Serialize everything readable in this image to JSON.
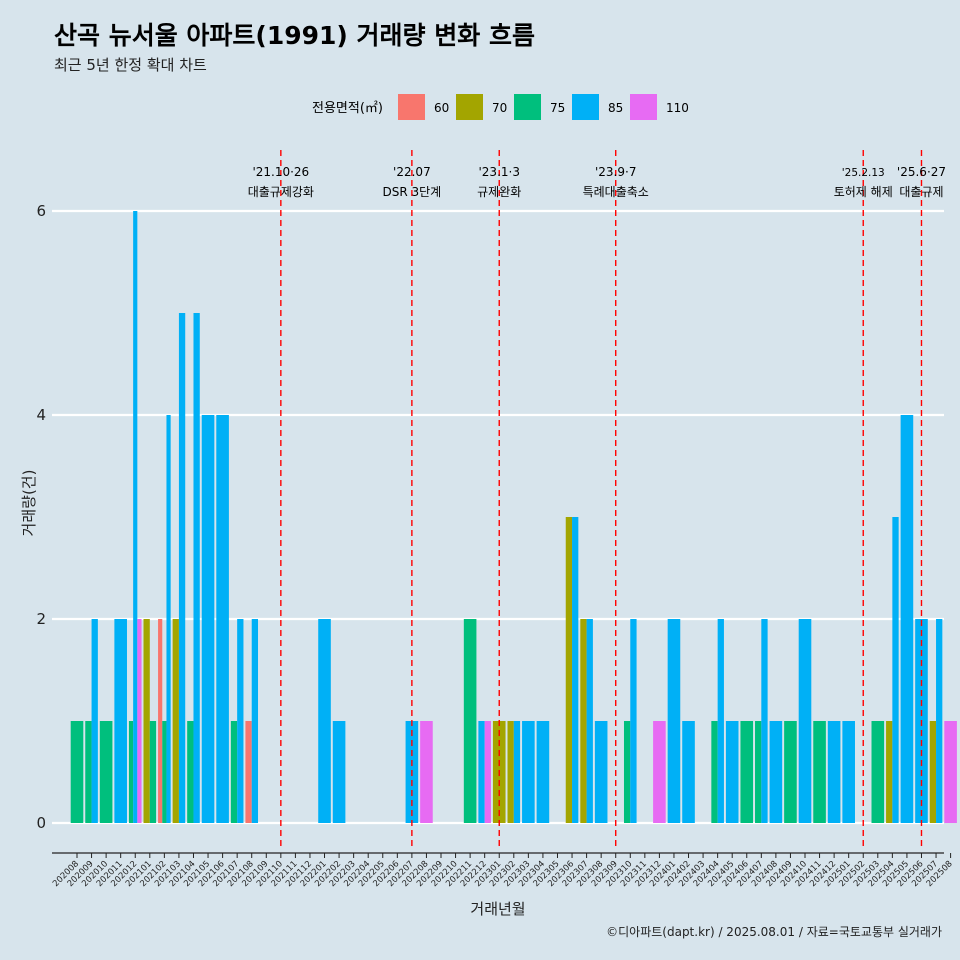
{
  "title": "산곡 뉴서울 아파트(1991) 거래량 변화 흐름",
  "subtitle": "최근 5년 한정 확대 차트",
  "caption": "©디아파트(dapt.kr) / 2025.08.01 / 자료=국토교통부 실거래가",
  "chart_data": {
    "type": "bar",
    "xlabel": "거래년월",
    "ylabel": "거래량(건)",
    "ylim": [
      0,
      6
    ],
    "yticks": [
      0,
      2,
      4,
      6
    ],
    "grid": true,
    "legend": {
      "title": "전용면적(㎡)",
      "placement": "top",
      "items": [
        {
          "name": "60",
          "color": "#F8766D"
        },
        {
          "name": "70",
          "color": "#A3A500"
        },
        {
          "name": "75",
          "color": "#00BF7D"
        },
        {
          "name": "85",
          "color": "#00B0F6"
        },
        {
          "name": "110",
          "color": "#E76BF3"
        }
      ]
    },
    "months": [
      "202008",
      "202009",
      "202010",
      "202011",
      "202012",
      "202101",
      "202102",
      "202103",
      "202104",
      "202105",
      "202106",
      "202107",
      "202108",
      "202109",
      "202110",
      "202111",
      "202112",
      "202201",
      "202202",
      "202203",
      "202204",
      "202205",
      "202206",
      "202207",
      "202208",
      "202209",
      "202210",
      "202211",
      "202212",
      "202301",
      "202302",
      "202303",
      "202304",
      "202305",
      "202306",
      "202307",
      "202308",
      "202309",
      "202310",
      "202311",
      "202312",
      "202401",
      "202402",
      "202403",
      "202404",
      "202405",
      "202406",
      "202407",
      "202408",
      "202409",
      "202410",
      "202411",
      "202412",
      "202501",
      "202502",
      "202503",
      "202504",
      "202505",
      "202506",
      "202507",
      "202508"
    ],
    "bars": [
      {
        "month": "202008",
        "area": "75",
        "value": 1
      },
      {
        "month": "202009",
        "area": "75",
        "value": 1
      },
      {
        "month": "202009",
        "area": "85",
        "value": 2
      },
      {
        "month": "202010",
        "area": "75",
        "value": 1
      },
      {
        "month": "202011",
        "area": "85",
        "value": 2
      },
      {
        "month": "202012",
        "area": "75",
        "value": 1
      },
      {
        "month": "202012",
        "area": "85",
        "value": 6
      },
      {
        "month": "202012",
        "area": "110",
        "value": 2
      },
      {
        "month": "202101",
        "area": "70",
        "value": 2
      },
      {
        "month": "202101",
        "area": "75",
        "value": 1
      },
      {
        "month": "202102",
        "area": "60",
        "value": 2
      },
      {
        "month": "202102",
        "area": "75",
        "value": 1
      },
      {
        "month": "202102",
        "area": "85",
        "value": 4
      },
      {
        "month": "202103",
        "area": "70",
        "value": 2
      },
      {
        "month": "202103",
        "area": "85",
        "value": 5
      },
      {
        "month": "202104",
        "area": "75",
        "value": 1
      },
      {
        "month": "202104",
        "area": "85",
        "value": 5
      },
      {
        "month": "202105",
        "area": "85",
        "value": 4
      },
      {
        "month": "202106",
        "area": "85",
        "value": 4
      },
      {
        "month": "202107",
        "area": "75",
        "value": 1
      },
      {
        "month": "202107",
        "area": "85",
        "value": 2
      },
      {
        "month": "202108",
        "area": "60",
        "value": 1
      },
      {
        "month": "202108",
        "area": "85",
        "value": 2
      },
      {
        "month": "202201",
        "area": "85",
        "value": 2
      },
      {
        "month": "202202",
        "area": "85",
        "value": 1
      },
      {
        "month": "202207",
        "area": "85",
        "value": 1
      },
      {
        "month": "202208",
        "area": "110",
        "value": 1
      },
      {
        "month": "202211",
        "area": "75",
        "value": 2
      },
      {
        "month": "202212",
        "area": "85",
        "value": 1
      },
      {
        "month": "202212",
        "area": "110",
        "value": 1
      },
      {
        "month": "202301",
        "area": "70",
        "value": 1
      },
      {
        "month": "202302",
        "area": "70",
        "value": 1
      },
      {
        "month": "202302",
        "area": "85",
        "value": 1
      },
      {
        "month": "202303",
        "area": "85",
        "value": 1
      },
      {
        "month": "202304",
        "area": "85",
        "value": 1
      },
      {
        "month": "202306",
        "area": "70",
        "value": 3
      },
      {
        "month": "202306",
        "area": "85",
        "value": 3
      },
      {
        "month": "202307",
        "area": "70",
        "value": 2
      },
      {
        "month": "202307",
        "area": "85",
        "value": 2
      },
      {
        "month": "202308",
        "area": "85",
        "value": 1
      },
      {
        "month": "202310",
        "area": "75",
        "value": 1
      },
      {
        "month": "202310",
        "area": "85",
        "value": 2
      },
      {
        "month": "202312",
        "area": "110",
        "value": 1
      },
      {
        "month": "202401",
        "area": "85",
        "value": 2
      },
      {
        "month": "202402",
        "area": "85",
        "value": 1
      },
      {
        "month": "202404",
        "area": "75",
        "value": 1
      },
      {
        "month": "202404",
        "area": "85",
        "value": 2
      },
      {
        "month": "202405",
        "area": "85",
        "value": 1
      },
      {
        "month": "202406",
        "area": "75",
        "value": 1
      },
      {
        "month": "202407",
        "area": "75",
        "value": 1
      },
      {
        "month": "202407",
        "area": "85",
        "value": 2
      },
      {
        "month": "202408",
        "area": "85",
        "value": 1
      },
      {
        "month": "202409",
        "area": "75",
        "value": 1
      },
      {
        "month": "202410",
        "area": "85",
        "value": 2
      },
      {
        "month": "202411",
        "area": "75",
        "value": 1
      },
      {
        "month": "202412",
        "area": "85",
        "value": 1
      },
      {
        "month": "202501",
        "area": "85",
        "value": 1
      },
      {
        "month": "202503",
        "area": "75",
        "value": 1
      },
      {
        "month": "202504",
        "area": "70",
        "value": 1
      },
      {
        "month": "202504",
        "area": "85",
        "value": 3
      },
      {
        "month": "202505",
        "area": "85",
        "value": 4
      },
      {
        "month": "202506",
        "area": "85",
        "value": 2
      },
      {
        "month": "202507",
        "area": "70",
        "value": 1
      },
      {
        "month": "202507",
        "area": "85",
        "value": 2
      },
      {
        "month": "202508",
        "area": "110",
        "value": 1
      }
    ],
    "annotations": [
      {
        "x": "202110",
        "line1": "'21.10·26",
        "line2": "대출규제강화"
      },
      {
        "x": "202207",
        "line1": "'22.07",
        "line2": "DSR 3단계"
      },
      {
        "x": "202301",
        "line1": "'23.1·3",
        "line2": "규제완화"
      },
      {
        "x": "202309",
        "line1": "'23.9·7",
        "line2": "특례대출축소"
      },
      {
        "x": "202502",
        "line1": "'25.2.13",
        "line2": "토허제 해제"
      },
      {
        "x": "202506",
        "line1": "'25.6·27",
        "line2": "대출규제"
      }
    ]
  }
}
